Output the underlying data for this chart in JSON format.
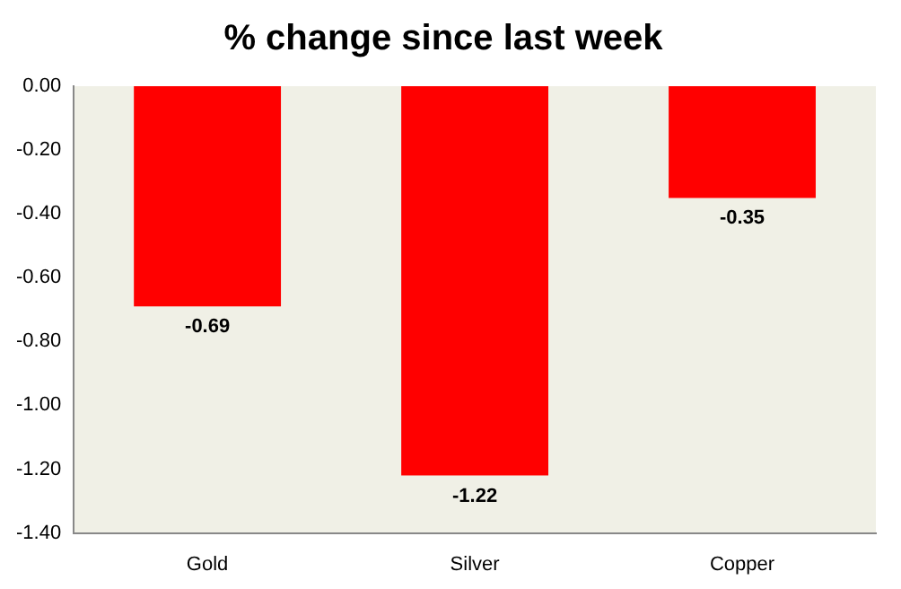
{
  "chart_data": {
    "type": "bar",
    "title": "% change since last week",
    "categories": [
      "Gold",
      "Silver",
      "Copper"
    ],
    "values": [
      -0.69,
      -1.22,
      -0.35
    ],
    "color": "#ff0000",
    "ylim": [
      -1.4,
      0
    ],
    "yticks": [
      {
        "value": 0,
        "label": "0.00"
      },
      {
        "value": -0.2,
        "label": "-0.20"
      },
      {
        "value": -0.4,
        "label": "-0.40"
      },
      {
        "value": -0.6,
        "label": "-0.60"
      },
      {
        "value": -0.8,
        "label": "-0.80"
      },
      {
        "value": -1,
        "label": "-1.00"
      },
      {
        "value": -1.2,
        "label": "-1.20"
      },
      {
        "value": -1.4,
        "label": "-1.40"
      }
    ],
    "grid": false,
    "legend": false,
    "data_labels": true
  }
}
